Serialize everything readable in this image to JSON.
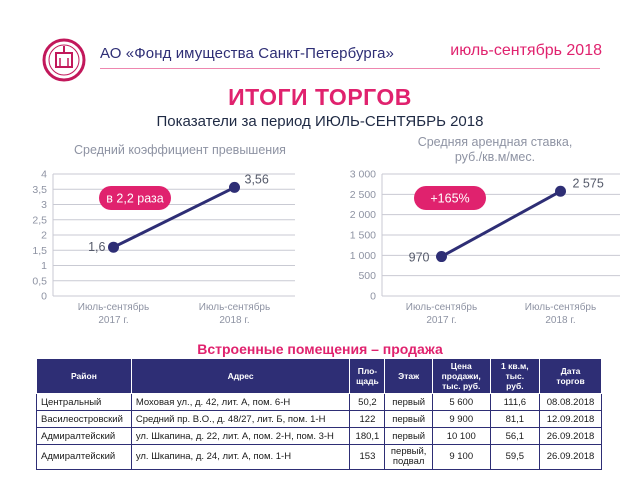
{
  "header": {
    "org_name": "АО «Фонд имущества Санкт-Петербурга»",
    "period": "июль-сентябрь 2018",
    "logo_icon": "fund-logo-icon"
  },
  "title": "ИТОГИ ТОРГОВ",
  "subtitle": "Показатели за период ИЮЛЬ-СЕНТЯБРЬ 2018",
  "colors": {
    "accent": "#e0226e",
    "navy": "#2e2e75",
    "grid": "#c9cad3",
    "axis_text": "#8e93a3"
  },
  "chart_data": [
    {
      "type": "line",
      "title": "Средний коэффициент превышения",
      "categories": [
        "Июль-сентябрь 2017 г.",
        "Июль-сентябрь 2018 г."
      ],
      "category_lines": [
        [
          "Июль-сентябрь",
          "2017 г."
        ],
        [
          "Июль-сентябрь",
          "2018 г."
        ]
      ],
      "values": [
        1.6,
        3.56
      ],
      "value_labels": [
        "1,6",
        "3,56"
      ],
      "ylim": [
        0,
        4
      ],
      "yticks": [
        0,
        0.5,
        1,
        1.5,
        2,
        2.5,
        3,
        3.5,
        4
      ],
      "ytick_labels": [
        "0",
        "0,5",
        "1",
        "1,5",
        "2",
        "2,5",
        "3",
        "3,5",
        "4"
      ],
      "grid": true,
      "badge": "в 2,2 раза"
    },
    {
      "type": "line",
      "title_lines": [
        "Средняя арендная ставка,",
        "руб./кв.м/мес."
      ],
      "categories": [
        "Июль-сентябрь 2017 г.",
        "Июль-сентябрь 2018 г."
      ],
      "category_lines": [
        [
          "Июль-сентябрь",
          "2017 г."
        ],
        [
          "Июль-сентябрь",
          "2018 г."
        ]
      ],
      "values": [
        970,
        2575
      ],
      "value_labels": [
        "970",
        "2 575"
      ],
      "ylim": [
        0,
        3000
      ],
      "yticks": [
        0,
        500,
        1000,
        1500,
        2000,
        2500,
        3000
      ],
      "ytick_labels": [
        "0",
        "500",
        "1 000",
        "1 500",
        "2 000",
        "2 500",
        "3 000"
      ],
      "grid": true,
      "badge": "+165%"
    }
  ],
  "table": {
    "title": "Встроенные помещения – продажа",
    "headers": [
      [
        "Район"
      ],
      [
        "Адрес"
      ],
      [
        "Пло-",
        "щадь"
      ],
      [
        "Этаж"
      ],
      [
        "Цена",
        "продажи,",
        "тыс. руб."
      ],
      [
        "1 кв.м,",
        "тыс.",
        "руб."
      ],
      [
        "Дата",
        "торгов"
      ]
    ],
    "rows": [
      {
        "district": "Центральный",
        "address": "Моховая ул., д. 42, лит. А, пом. 6-Н",
        "area": "50,2",
        "floor": "первый",
        "floor2": "",
        "price": "5 600",
        "sqm": "111,6",
        "date": "08.08.2018"
      },
      {
        "district": "Василеостровский",
        "address": "Средний пр. В.О., д. 48/27, лит. Б, пом. 1-Н",
        "area": "122",
        "floor": "первый",
        "floor2": "",
        "price": "9 900",
        "sqm": "81,1",
        "date": "12.09.2018"
      },
      {
        "district": "Адмиралтейский",
        "address": "ул. Шкапина, д. 22, лит. А, пом. 2-Н, пом. 3-Н",
        "area": "180,1",
        "floor": "первый",
        "floor2": "",
        "price": "10 100",
        "sqm": "56,1",
        "date": "26.09.2018"
      },
      {
        "district": "Адмиралтейский",
        "address": "ул. Шкапина, д. 24, лит. А, пом. 1-Н",
        "area": "153",
        "floor": "первый,",
        "floor2": "подвал",
        "price": "9 100",
        "sqm": "59,5",
        "date": "26.09.2018"
      }
    ]
  }
}
